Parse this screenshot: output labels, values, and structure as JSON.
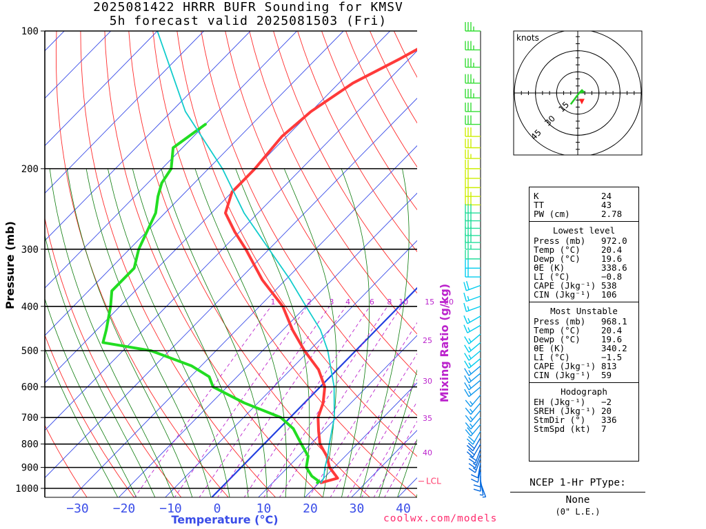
{
  "header": {
    "title_line1": "2025081422 HRRR BUFR Sounding for KMSV",
    "title_line2": "5h forecast valid 2025081503 (Fri)"
  },
  "chart_data": {
    "type": "line",
    "subtype": "skew-t log-p",
    "xlabel": "Temperature (°C)",
    "ylabel": "Pressure (mb)",
    "right_label": "Mixing Ratio (g/kg)",
    "xlim": [
      -35,
      42
    ],
    "ylim": [
      1050,
      100
    ],
    "x_ticks": [
      -30,
      -20,
      -10,
      0,
      10,
      20,
      30,
      40
    ],
    "y_ticks": [
      100,
      200,
      300,
      400,
      500,
      600,
      700,
      800,
      900,
      1000
    ],
    "mixing_ratio_ticks": [
      "1",
      "2",
      "3",
      "4",
      "6",
      "8",
      "10",
      "15",
      "20",
      "25",
      "30",
      "35",
      "40"
    ],
    "lcl_label": "LCL",
    "lcl_pressure": 965,
    "series": [
      {
        "role": "temperature",
        "color": "#ff3a3a",
        "points": [
          [
            100,
            -47
          ],
          [
            115,
            -52
          ],
          [
            130,
            -57
          ],
          [
            150,
            -60
          ],
          [
            170,
            -61
          ],
          [
            200,
            -60
          ],
          [
            225,
            -60
          ],
          [
            250,
            -57
          ],
          [
            275,
            -51
          ],
          [
            300,
            -45
          ],
          [
            350,
            -35
          ],
          [
            400,
            -25
          ],
          [
            450,
            -18
          ],
          [
            500,
            -11
          ],
          [
            550,
            -4
          ],
          [
            600,
            1
          ],
          [
            650,
            4
          ],
          [
            700,
            6
          ],
          [
            750,
            9
          ],
          [
            800,
            12
          ],
          [
            850,
            16
          ],
          [
            900,
            19
          ],
          [
            950,
            23
          ],
          [
            972,
            20.4
          ]
        ]
      },
      {
        "role": "dewpoint",
        "color": "#22dd22",
        "points": [
          [
            160,
            -80
          ],
          [
            180,
            -82
          ],
          [
            200,
            -78
          ],
          [
            215,
            -77
          ],
          [
            230,
            -75
          ],
          [
            250,
            -72
          ],
          [
            300,
            -68
          ],
          [
            330,
            -65
          ],
          [
            370,
            -65
          ],
          [
            400,
            -62
          ],
          [
            450,
            -58
          ],
          [
            480,
            -56
          ],
          [
            500,
            -44
          ],
          [
            540,
            -32
          ],
          [
            570,
            -26
          ],
          [
            600,
            -23
          ],
          [
            650,
            -13
          ],
          [
            700,
            -2
          ],
          [
            740,
            3
          ],
          [
            800,
            8
          ],
          [
            850,
            12
          ],
          [
            900,
            14
          ],
          [
            940,
            17
          ],
          [
            965,
            19.6
          ],
          [
            972,
            19.6
          ]
        ]
      },
      {
        "role": "parcel",
        "color": "#11cccc",
        "points": [
          [
            972,
            20.4
          ],
          [
            950,
            20
          ],
          [
            900,
            18
          ],
          [
            850,
            16.2
          ],
          [
            800,
            14
          ],
          [
            700,
            9.5
          ],
          [
            600,
            3
          ],
          [
            500,
            -6
          ],
          [
            450,
            -12
          ],
          [
            400,
            -20
          ],
          [
            350,
            -29
          ],
          [
            300,
            -40
          ],
          [
            250,
            -53
          ],
          [
            200,
            -67
          ],
          [
            150,
            -87
          ],
          [
            100,
            -110
          ]
        ]
      }
    ],
    "hodograph": {
      "units_label": "knots",
      "ring_labels": [
        "15",
        "30",
        "45"
      ],
      "points": [
        [
          -5,
          -8
        ],
        [
          -2,
          -4
        ],
        [
          1,
          0
        ],
        [
          3,
          2
        ],
        [
          4,
          1
        ],
        [
          2,
          0
        ]
      ],
      "storm_motion": {
        "dir": 336,
        "speed": 7
      }
    },
    "wind_barbs": {
      "pressures": [
        100,
        110,
        120,
        130,
        140,
        150,
        160,
        170,
        180,
        190,
        200,
        210,
        220,
        230,
        240,
        250,
        260,
        270,
        280,
        290,
        300,
        315,
        330,
        345,
        360,
        380,
        400,
        420,
        440,
        460,
        480,
        500,
        520,
        540,
        560,
        580,
        600,
        625,
        650,
        675,
        700,
        725,
        750,
        775,
        800,
        820,
        840,
        860,
        880,
        900,
        920,
        940,
        960,
        972
      ],
      "speeds_kt": [
        35,
        35,
        35,
        35,
        35,
        30,
        30,
        30,
        30,
        25,
        20,
        20,
        20,
        25,
        30,
        30,
        30,
        30,
        30,
        30,
        25,
        20,
        20,
        20,
        20,
        15,
        15,
        15,
        15,
        15,
        15,
        15,
        15,
        15,
        15,
        15,
        15,
        15,
        15,
        15,
        15,
        20,
        20,
        20,
        20,
        20,
        15,
        15,
        10,
        10,
        10,
        10,
        5,
        5
      ],
      "directions_deg": [
        270,
        270,
        270,
        270,
        270,
        270,
        270,
        270,
        270,
        270,
        270,
        270,
        270,
        270,
        270,
        270,
        270,
        270,
        270,
        270,
        270,
        270,
        270,
        270,
        250,
        250,
        250,
        240,
        240,
        230,
        230,
        230,
        230,
        230,
        230,
        230,
        230,
        220,
        220,
        220,
        220,
        220,
        210,
        210,
        210,
        200,
        200,
        200,
        190,
        190,
        180,
        180,
        170,
        160
      ]
    }
  },
  "stats": {
    "rows_top": [
      {
        "label": "K",
        "value": "24"
      },
      {
        "label": "TT",
        "value": "43"
      },
      {
        "label": "PW (cm)",
        "value": "2.78"
      }
    ],
    "lowest_level": {
      "title": "Lowest level",
      "rows": [
        {
          "label": "Press (mb)",
          "value": "972.0"
        },
        {
          "label": "Temp (°C)",
          "value": "20.4"
        },
        {
          "label": "Dewp (°C)",
          "value": "19.6"
        },
        {
          "label": "θE (K)",
          "value": "338.6"
        },
        {
          "label": "LI (°C)",
          "value": "−0.8"
        },
        {
          "label": "CAPE (Jkg⁻¹)",
          "value": "538"
        },
        {
          "label": "CIN (Jkg⁻¹)",
          "value": "106"
        }
      ]
    },
    "most_unstable": {
      "title": "Most Unstable",
      "rows": [
        {
          "label": "Press (mb)",
          "value": "968.1"
        },
        {
          "label": "Temp (°C)",
          "value": "20.4"
        },
        {
          "label": "Dewp (°C)",
          "value": "19.6"
        },
        {
          "label": "θE (K)",
          "value": "340.2"
        },
        {
          "label": "LI (°C)",
          "value": "−1.5"
        },
        {
          "label": "CAPE (Jkg⁻¹)",
          "value": "813"
        },
        {
          "label": "CIN (Jkg⁻¹)",
          "value": "59"
        }
      ]
    },
    "hodograph_stats": {
      "title": "Hodograph",
      "rows": [
        {
          "label": "EH (Jkg⁻¹)",
          "value": "−2"
        },
        {
          "label": "SREH (Jkg⁻¹)",
          "value": "20"
        },
        {
          "label": "StmDir (°)",
          "value": "336"
        },
        {
          "label": "StmSpd (kt)",
          "value": "7"
        }
      ]
    }
  },
  "ptype": {
    "title": "NCEP 1-Hr PType:",
    "value": "None",
    "note": "(0\" L.E.)"
  },
  "footer": {
    "site": "coolwx.com/models"
  },
  "colors": {
    "isotherm": "#3a4de8",
    "dry_adiabat": "#ff2a2a",
    "moist_adiabat": "#0a7a0a",
    "mixing_ratio": "#bb22cc",
    "zero_isotherm": "#2340e0",
    "axis_text": "#3a4de8"
  }
}
